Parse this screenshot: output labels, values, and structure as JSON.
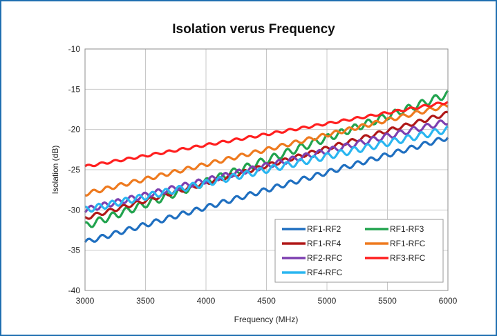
{
  "chart_data": {
    "type": "line",
    "title": "Isolation verus Frequency",
    "xlabel": "Frequency (MHz)",
    "ylabel": "Isolation (dB)",
    "xlim": [
      3000,
      6000
    ],
    "ylim": [
      -40,
      -10
    ],
    "xticks": [
      3000,
      3500,
      4000,
      4500,
      5000,
      5500,
      6000
    ],
    "yticks": [
      -40,
      -35,
      -30,
      -25,
      -20,
      -15,
      -10
    ],
    "grid": true,
    "legend_position": "bottom-right",
    "series": [
      {
        "name": "RF1-RF2",
        "color": "#1f6fc0",
        "start": -34.0,
        "end": -21.0,
        "ripple": 0.6
      },
      {
        "name": "RF1-RF3",
        "color": "#21a34e",
        "start": -32.0,
        "end": -15.6,
        "ripple": 0.9
      },
      {
        "name": "RF1-RF4",
        "color": "#b01818",
        "start": -31.0,
        "end": -18.0,
        "ripple": 0.5
      },
      {
        "name": "RF1-RFC",
        "color": "#ee7a1f",
        "start": -28.0,
        "end": -17.0,
        "ripple": 0.5
      },
      {
        "name": "RF2-RFC",
        "color": "#7d3fb0",
        "start": -30.0,
        "end": -19.0,
        "ripple": 0.7
      },
      {
        "name": "RF3-RFC",
        "color": "#ff1f1f",
        "start": -24.6,
        "end": -16.6,
        "ripple": 0.3
      },
      {
        "name": "RF4-RFC",
        "color": "#2ab6f0",
        "start": -30.0,
        "end": -20.0,
        "ripple": 0.8
      }
    ]
  }
}
